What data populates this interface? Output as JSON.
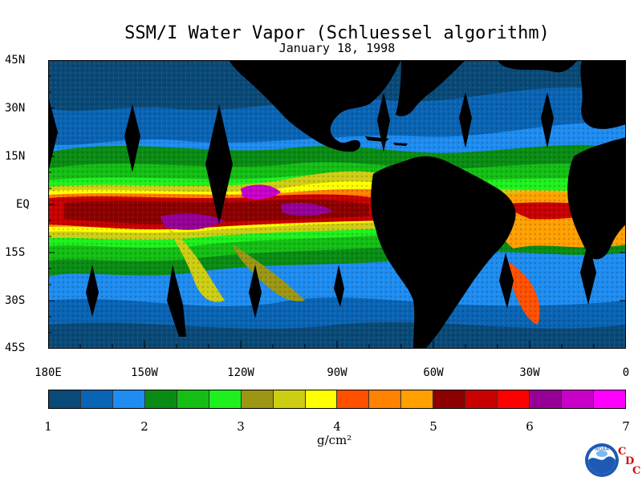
{
  "title": "SSM/I Water Vapor (Schluessel algorithm)",
  "subtitle": "January 18, 1998",
  "lat_labels": [
    "45N",
    "30N",
    "15N",
    "EQ",
    "15S",
    "30S",
    "45S"
  ],
  "lon_labels": [
    "180E",
    "150W",
    "120W",
    "90W",
    "60W",
    "30W",
    "0"
  ],
  "colorbar": {
    "ticks": [
      "1",
      "2",
      "3",
      "4",
      "5",
      "6",
      "7"
    ],
    "unit": "g/cm²",
    "colors": [
      "#0a4a78",
      "#0a64b4",
      "#1e8cf0",
      "#0a8c14",
      "#14be14",
      "#1ef01e",
      "#9c9614",
      "#cdcd14",
      "#ffff00",
      "#ff5000",
      "#ff8200",
      "#ffa000",
      "#8c0000",
      "#c80000",
      "#ff0000",
      "#960096",
      "#c800c8",
      "#ff00ff"
    ]
  },
  "logo": {
    "text": "NOAA",
    "cdc": [
      "C",
      "D",
      "C"
    ]
  }
}
